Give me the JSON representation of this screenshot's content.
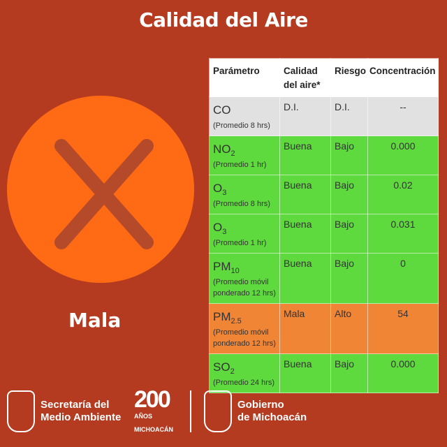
{
  "title": "Calidad del Aire",
  "status": {
    "label": "Mala",
    "icon": "x-icon",
    "circle_color": "#ff6a14"
  },
  "table": {
    "headers": [
      "Parámetro",
      "Calidad del aire*",
      "Riesgo",
      "Concentración"
    ],
    "rows": [
      {
        "param": "CO",
        "sub": "",
        "note": "(Promedio 8 hrs)",
        "calidad": "D.I.",
        "riesgo": "D.I.",
        "conc": "--",
        "color": "#e1e1e1"
      },
      {
        "param": "NO",
        "sub": "2",
        "note": "(Promedio 1 hr)",
        "calidad": "Buena",
        "riesgo": "Bajo",
        "conc": "0.000",
        "color": "#5ed93e"
      },
      {
        "param": "O",
        "sub": "3",
        "note": "(Promedio 8 hrs)",
        "calidad": "Buena",
        "riesgo": "Bajo",
        "conc": "0.02",
        "color": "#5ed93e"
      },
      {
        "param": "O",
        "sub": "3",
        "note": "(Promedio 1 hr)",
        "calidad": "Buena",
        "riesgo": "Bajo",
        "conc": "0.031",
        "color": "#5ed93e"
      },
      {
        "param": "PM",
        "sub": "10",
        "note": "(Promedio móvil ponderado 12 hrs)",
        "calidad": "Buena",
        "riesgo": "Bajo",
        "conc": "0",
        "color": "#5ed93e"
      },
      {
        "param": "PM",
        "sub": "2.5",
        "note": "(Promedio móvil ponderado 12 hrs)",
        "calidad": "Mala",
        "riesgo": "Alto",
        "conc": "54",
        "color": "#f08536"
      },
      {
        "param": "SO",
        "sub": "2",
        "note": "(Promedio 24 hrs)",
        "calidad": "Buena",
        "riesgo": "Bajo",
        "conc": "0.000",
        "color": "#5ed93e"
      }
    ]
  },
  "footer": {
    "sma_line1": "Secretaría del",
    "sma_line2": "Medio Ambiente",
    "anniv_number": "200",
    "anniv_line1": "AÑOS",
    "anniv_line2": "MICHOACÁN",
    "gob_line1": "Gobierno",
    "gob_line2": "de Michoacán"
  }
}
